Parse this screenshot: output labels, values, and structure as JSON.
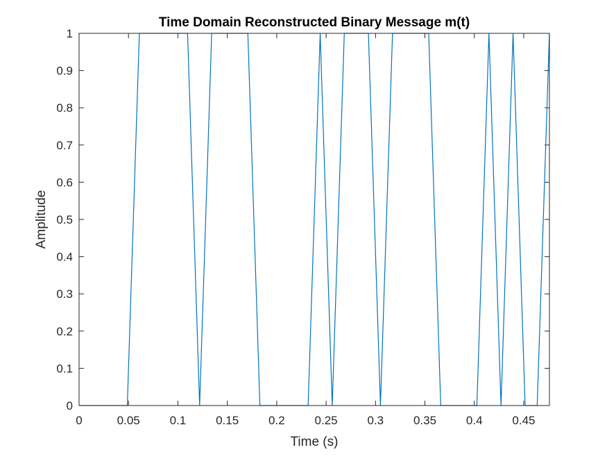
{
  "chart_data": {
    "type": "line",
    "title": "Time Domain Reconstructed Binary Message m(t)",
    "xlabel": "Time (s)",
    "ylabel": "Amplitude",
    "xlim": [
      0,
      0.476
    ],
    "ylim": [
      0,
      1
    ],
    "x_ticks": [
      0,
      0.05,
      0.1,
      0.15,
      0.2,
      0.25,
      0.3,
      0.35,
      0.4,
      0.45
    ],
    "x_tick_labels": [
      "0",
      "0.05",
      "0.1",
      "0.15",
      "0.2",
      "0.25",
      "0.3",
      "0.35",
      "0.4",
      "0.45"
    ],
    "y_ticks": [
      0,
      0.1,
      0.2,
      0.3,
      0.4,
      0.5,
      0.6,
      0.7,
      0.8,
      0.9,
      1
    ],
    "y_tick_labels": [
      "0",
      "0.1",
      "0.2",
      "0.3",
      "0.4",
      "0.5",
      "0.6",
      "0.7",
      "0.8",
      "0.9",
      "1"
    ],
    "grid": false,
    "box": true,
    "line_color": "#0072BD",
    "series": [
      {
        "x": [
          0,
          0.0488,
          0.061,
          0.1098,
          0.122,
          0.1342,
          0.1708,
          0.183,
          0.2318,
          0.244,
          0.2562,
          0.2684,
          0.2928,
          0.305,
          0.3172,
          0.3538,
          0.366,
          0.4026,
          0.4148,
          0.427,
          0.4392,
          0.4514,
          0.4636,
          0.476
        ],
        "y": [
          0,
          0,
          1,
          1,
          0,
          1,
          1,
          0,
          0,
          1,
          0,
          1,
          1,
          0,
          1,
          1,
          0,
          0,
          1,
          0,
          1,
          0,
          0,
          1
        ]
      }
    ]
  }
}
